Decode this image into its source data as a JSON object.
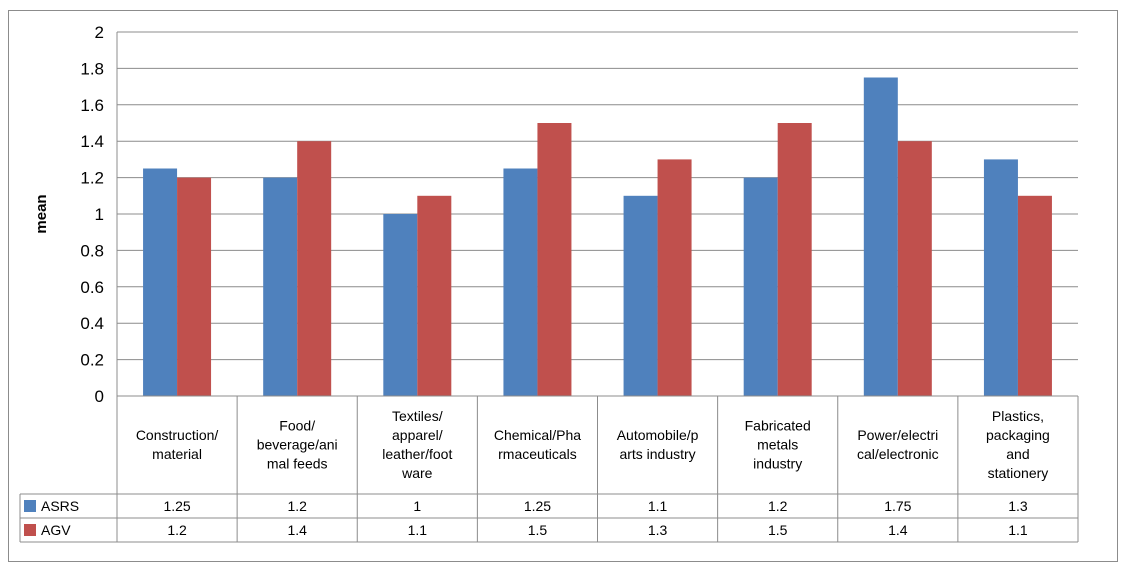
{
  "chart_data": {
    "type": "bar",
    "title": "",
    "xlabel": "",
    "ylabel": "mean",
    "ylim": [
      0,
      2
    ],
    "yticks": [
      "0",
      "0.2",
      "0.4",
      "0.6",
      "0.8",
      "1",
      "1.2",
      "1.4",
      "1.6",
      "1.8",
      "2"
    ],
    "grid": true,
    "legend": "data table rows",
    "categories": [
      [
        "Construction/",
        "material"
      ],
      [
        "Food/",
        "beverage/ani",
        "mal feeds"
      ],
      [
        "Textiles/",
        "apparel/",
        "leather/foot",
        "ware"
      ],
      [
        "Chemical/Pha",
        "rmaceuticals"
      ],
      [
        "Automobile/p",
        "arts industry"
      ],
      [
        "Fabricated",
        "metals",
        "industry"
      ],
      [
        "Power/electri",
        "cal/electronic"
      ],
      [
        "Plastics,",
        "packaging",
        "and",
        "stationery"
      ]
    ],
    "series": [
      {
        "name": "ASRS",
        "color": "#4f81bd",
        "values": [
          1.25,
          1.2,
          1,
          1.25,
          1.1,
          1.2,
          1.75,
          1.3
        ],
        "labels": [
          "1.25",
          "1.2",
          "1",
          "1.25",
          "1.1",
          "1.2",
          "1.75",
          "1.3"
        ]
      },
      {
        "name": "AGV",
        "color": "#c0504d",
        "values": [
          1.2,
          1.4,
          1.1,
          1.5,
          1.3,
          1.5,
          1.4,
          1.1
        ],
        "labels": [
          "1.2",
          "1.4",
          "1.1",
          "1.5",
          "1.3",
          "1.5",
          "1.4",
          "1.1"
        ]
      }
    ]
  }
}
